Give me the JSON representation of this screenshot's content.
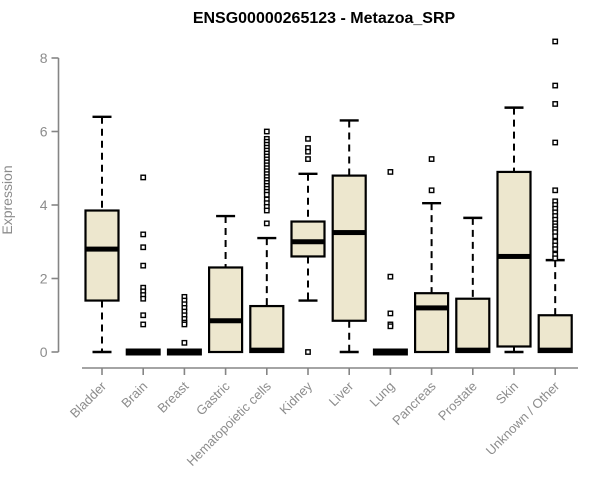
{
  "chart_data": {
    "type": "boxplot",
    "title": "ENSG00000265123 - Metazoa_SRP",
    "ylabel": "Expression",
    "xlabel": "",
    "ylim": [
      0,
      8
    ],
    "yticks": [
      0,
      2,
      4,
      6,
      8
    ],
    "grid": false,
    "legend": null,
    "colors": {
      "box_fill": "#EDE7CE",
      "box_stroke": "#000000",
      "axis": "#858585",
      "tick_label": "#8c8c8c",
      "title": "#000000",
      "outlier_fill": "#ffffff"
    },
    "categories": [
      "Bladder",
      "Brain",
      "Breast",
      "Gastric",
      "Hematopoietic cells",
      "Kidney",
      "Liver",
      "Lung",
      "Pancreas",
      "Prostate",
      "Skin",
      "Unknown / Other"
    ],
    "series": [
      {
        "name": "Bladder",
        "low": 0,
        "q1": 1.4,
        "median": 2.8,
        "q3": 3.85,
        "high": 6.4,
        "outliers": []
      },
      {
        "name": "Brain",
        "low": 0,
        "q1": 0,
        "median": 0,
        "q3": 0,
        "high": 0,
        "outliers": [
          4.75,
          3.2,
          2.85,
          2.35,
          1.75,
          1.65,
          1.55,
          1.45,
          1.0,
          0.75
        ]
      },
      {
        "name": "Breast",
        "low": 0,
        "q1": 0,
        "median": 0,
        "q3": 0,
        "high": 0,
        "outliers": [
          1.5,
          1.4,
          1.3,
          1.2,
          1.1,
          1.0,
          0.9,
          0.8,
          0.75,
          0.25
        ]
      },
      {
        "name": "Gastric",
        "low": 0,
        "q1": 0,
        "median": 0.85,
        "q3": 2.3,
        "high": 3.7,
        "outliers": []
      },
      {
        "name": "Hematopoietic cells",
        "low": 0,
        "q1": 0,
        "median": 0.05,
        "q3": 1.25,
        "high": 3.1,
        "outliers": [
          6.0,
          5.8,
          5.72,
          5.64,
          5.56,
          5.48,
          5.4,
          5.32,
          5.24,
          5.16,
          5.08,
          5.0,
          4.92,
          4.84,
          4.76,
          4.68,
          4.6,
          4.52,
          4.44,
          4.36,
          4.28,
          4.15,
          4.05,
          3.95,
          3.85,
          3.5
        ]
      },
      {
        "name": "Kidney",
        "low": 1.4,
        "q1": 2.6,
        "median": 3.0,
        "q3": 3.55,
        "high": 4.85,
        "outliers": [
          5.8,
          5.55,
          5.45,
          5.25,
          0
        ]
      },
      {
        "name": "Liver",
        "low": 0,
        "q1": 0.85,
        "median": 3.25,
        "q3": 4.8,
        "high": 6.3,
        "outliers": []
      },
      {
        "name": "Lung",
        "low": 0,
        "q1": 0,
        "median": 0,
        "q3": 0,
        "high": 0,
        "outliers": [
          4.9,
          2.05,
          1.05,
          0.75,
          0.7
        ]
      },
      {
        "name": "Pancreas",
        "low": 0,
        "q1": 0,
        "median": 1.2,
        "q3": 1.6,
        "high": 4.05,
        "outliers": [
          5.25,
          4.4
        ]
      },
      {
        "name": "Prostate",
        "low": 0,
        "q1": 0,
        "median": 0.05,
        "q3": 1.45,
        "high": 3.65,
        "outliers": []
      },
      {
        "name": "Skin",
        "low": 0,
        "q1": 0.15,
        "median": 2.6,
        "q3": 4.9,
        "high": 6.65,
        "outliers": []
      },
      {
        "name": "Unknown / Other",
        "low": 0,
        "q1": 0,
        "median": 0.05,
        "q3": 1.0,
        "high": 2.5,
        "outliers": [
          8.45,
          7.25,
          6.75,
          5.7,
          4.4,
          4.1,
          4.0,
          3.9,
          3.8,
          3.7,
          3.6,
          3.5,
          3.42,
          3.34,
          3.26,
          3.15,
          3.0,
          2.9,
          2.8,
          2.65,
          2.55
        ]
      }
    ]
  }
}
